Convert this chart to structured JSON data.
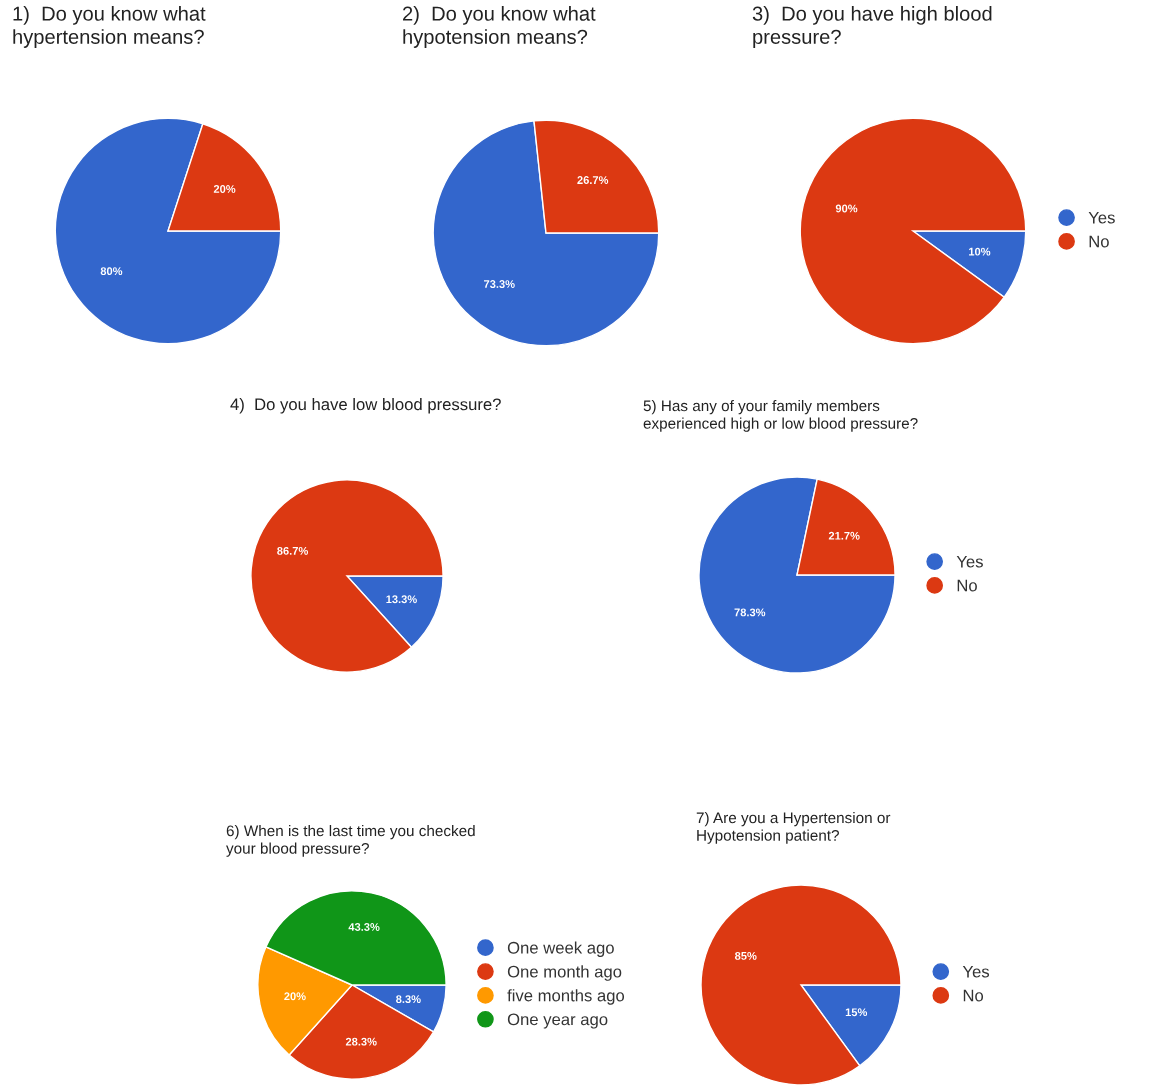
{
  "chart_data": [
    {
      "type": "pie",
      "title": "1)  Do you know what\nhypertension means?",
      "categories": [
        null,
        null
      ],
      "values": [
        80,
        20
      ],
      "colors": [
        "#3366cc",
        "#dc3912"
      ],
      "value_labels": [
        "80%",
        "20%"
      ],
      "legend": false
    },
    {
      "type": "pie",
      "title": "2)  Do you know what\nhypotension means?",
      "categories": [
        null,
        null
      ],
      "values": [
        73.3,
        26.7
      ],
      "colors": [
        "#3366cc",
        "#dc3912"
      ],
      "value_labels": [
        "73.3%",
        "26.7%"
      ],
      "legend": false
    },
    {
      "type": "pie",
      "title": "3)  Do you have high blood\npressure?",
      "categories": [
        "Yes",
        "No"
      ],
      "values": [
        10,
        90
      ],
      "colors": [
        "#3366cc",
        "#dc3912"
      ],
      "value_labels": [
        "10%",
        "90%"
      ],
      "legend": "right"
    },
    {
      "type": "pie",
      "title": "4)  Do you have low blood pressure?",
      "categories": [
        null,
        null
      ],
      "values": [
        13.3,
        86.7
      ],
      "colors": [
        "#3366cc",
        "#dc3912"
      ],
      "value_labels": [
        "13.3%",
        "86.7%"
      ],
      "legend": false
    },
    {
      "type": "pie",
      "title": "5) Has any of your family members\nexperienced high or low blood pressure?",
      "categories": [
        "Yes",
        "No"
      ],
      "values": [
        78.3,
        21.7
      ],
      "colors": [
        "#3366cc",
        "#dc3912"
      ],
      "value_labels": [
        "78.3%",
        "21.7%"
      ],
      "legend": "right"
    },
    {
      "type": "pie",
      "title": "6) When is the last time you checked\nyour blood pressure?",
      "categories": [
        "One week ago",
        "One month ago",
        "five months ago",
        "One year ago"
      ],
      "values": [
        8.3,
        28.3,
        20,
        43.3
      ],
      "colors": [
        "#3366cc",
        "#dc3912",
        "#ff9900",
        "#109618"
      ],
      "value_labels": [
        "8.3%",
        "28.3%",
        "20%",
        "43.3%"
      ],
      "legend": "right"
    },
    {
      "type": "pie",
      "title": "7) Are you a Hypertension or\nHypotension patient?",
      "categories": [
        "Yes",
        "No"
      ],
      "values": [
        15,
        85
      ],
      "colors": [
        "#3366cc",
        "#dc3912"
      ],
      "value_labels": [
        "15%",
        "85%"
      ],
      "legend": "right"
    }
  ]
}
